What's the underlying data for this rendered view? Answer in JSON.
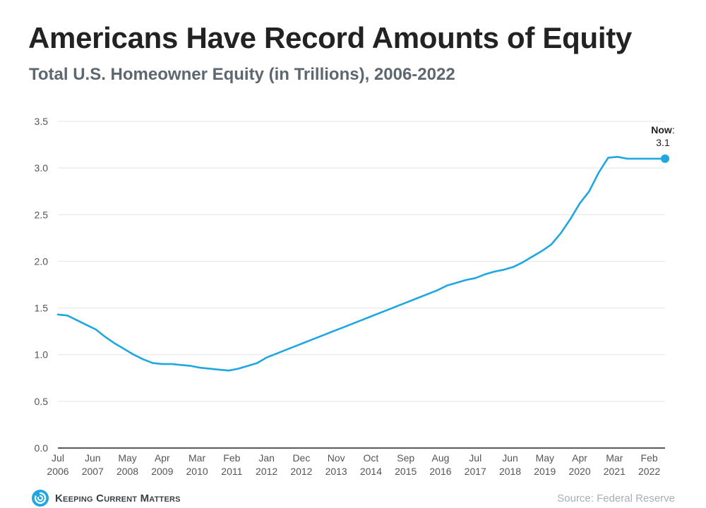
{
  "header": {
    "title": "Americans Have Record Amounts of Equity",
    "subtitle": "Total U.S. Homeowner Equity (in Trillions), 2006-2022"
  },
  "footer": {
    "logo_text": "Keeping Current Matters",
    "logo_icon": "swirl-logo-icon",
    "source": "Source: Federal Reserve"
  },
  "colors": {
    "line": "#1ea7e1",
    "grid": "#e3e3e3",
    "axis": "#222222",
    "tick_text": "#555555"
  },
  "chart_data": {
    "type": "line",
    "title": "Americans Have Record Amounts of Equity",
    "subtitle": "Total U.S. Homeowner Equity (in Trillions), 2006-2022",
    "xlabel": "",
    "ylabel": "",
    "ylim": [
      0,
      3.5
    ],
    "yticks": [
      0.0,
      0.5,
      1.0,
      1.5,
      2.0,
      2.5,
      3.0,
      3.5
    ],
    "xlim": [
      "2006-07",
      "2022-07"
    ],
    "xticks": [
      {
        "date": "2006-07",
        "label": [
          "Jul",
          "2006"
        ]
      },
      {
        "date": "2007-06",
        "label": [
          "Jun",
          "2007"
        ]
      },
      {
        "date": "2008-05",
        "label": [
          "May",
          "2008"
        ]
      },
      {
        "date": "2009-04",
        "label": [
          "Apr",
          "2009"
        ]
      },
      {
        "date": "2010-03",
        "label": [
          "Mar",
          "2010"
        ]
      },
      {
        "date": "2011-02",
        "label": [
          "Feb",
          "2011"
        ]
      },
      {
        "date": "2012-01",
        "label": [
          "Jan",
          "2012"
        ]
      },
      {
        "date": "2012-12",
        "label": [
          "Dec",
          "2012"
        ]
      },
      {
        "date": "2013-11",
        "label": [
          "Nov",
          "2013"
        ]
      },
      {
        "date": "2014-10",
        "label": [
          "Oct",
          "2014"
        ]
      },
      {
        "date": "2015-09",
        "label": [
          "Sep",
          "2015"
        ]
      },
      {
        "date": "2016-08",
        "label": [
          "Aug",
          "2016"
        ]
      },
      {
        "date": "2017-07",
        "label": [
          "Jul",
          "2017"
        ]
      },
      {
        "date": "2018-06",
        "label": [
          "Jun",
          "2018"
        ]
      },
      {
        "date": "2019-05",
        "label": [
          "May",
          "2019"
        ]
      },
      {
        "date": "2020-04",
        "label": [
          "Apr",
          "2020"
        ]
      },
      {
        "date": "2021-03",
        "label": [
          "Mar",
          "2021"
        ]
      },
      {
        "date": "2022-02",
        "label": [
          "Feb",
          "2022"
        ]
      }
    ],
    "grid": true,
    "legend": "none",
    "series": [
      {
        "x": [
          "2006-07",
          "2006-10",
          "2007-01",
          "2007-04",
          "2007-07",
          "2007-10",
          "2008-01",
          "2008-04",
          "2008-07",
          "2008-10",
          "2009-01",
          "2009-04",
          "2009-07",
          "2009-10",
          "2010-01",
          "2010-04",
          "2010-07",
          "2010-10",
          "2011-01",
          "2011-04",
          "2011-07",
          "2011-10",
          "2012-01",
          "2012-04",
          "2012-07",
          "2012-10",
          "2013-01",
          "2013-04",
          "2013-07",
          "2013-10",
          "2014-01",
          "2014-04",
          "2014-07",
          "2014-10",
          "2015-01",
          "2015-04",
          "2015-07",
          "2015-10",
          "2016-01",
          "2016-04",
          "2016-07",
          "2016-10",
          "2017-01",
          "2017-04",
          "2017-07",
          "2017-10",
          "2018-01",
          "2018-04",
          "2018-07",
          "2018-10",
          "2019-01",
          "2019-04",
          "2019-07",
          "2019-10",
          "2020-01",
          "2020-04",
          "2020-07",
          "2020-10",
          "2021-01",
          "2021-04",
          "2021-07",
          "2021-10",
          "2022-01",
          "2022-04",
          "2022-07"
        ],
        "values": [
          1.43,
          1.42,
          1.37,
          1.32,
          1.27,
          1.19,
          1.12,
          1.06,
          1.0,
          0.95,
          0.91,
          0.9,
          0.9,
          0.89,
          0.88,
          0.86,
          0.85,
          0.84,
          0.83,
          0.85,
          0.88,
          0.91,
          0.97,
          1.01,
          1.05,
          1.09,
          1.13,
          1.17,
          1.21,
          1.25,
          1.29,
          1.33,
          1.37,
          1.41,
          1.45,
          1.49,
          1.53,
          1.57,
          1.61,
          1.65,
          1.69,
          1.74,
          1.77,
          1.8,
          1.82,
          1.86,
          1.89,
          1.91,
          1.94,
          1.99,
          2.05,
          2.11,
          2.18,
          2.3,
          2.45,
          2.62,
          2.75,
          2.95,
          3.11,
          3.12,
          3.1,
          3.1,
          3.1,
          3.1,
          3.1
        ]
      }
    ],
    "annotation": {
      "label": "Now",
      "suffix": ":",
      "value": "3.1"
    }
  }
}
